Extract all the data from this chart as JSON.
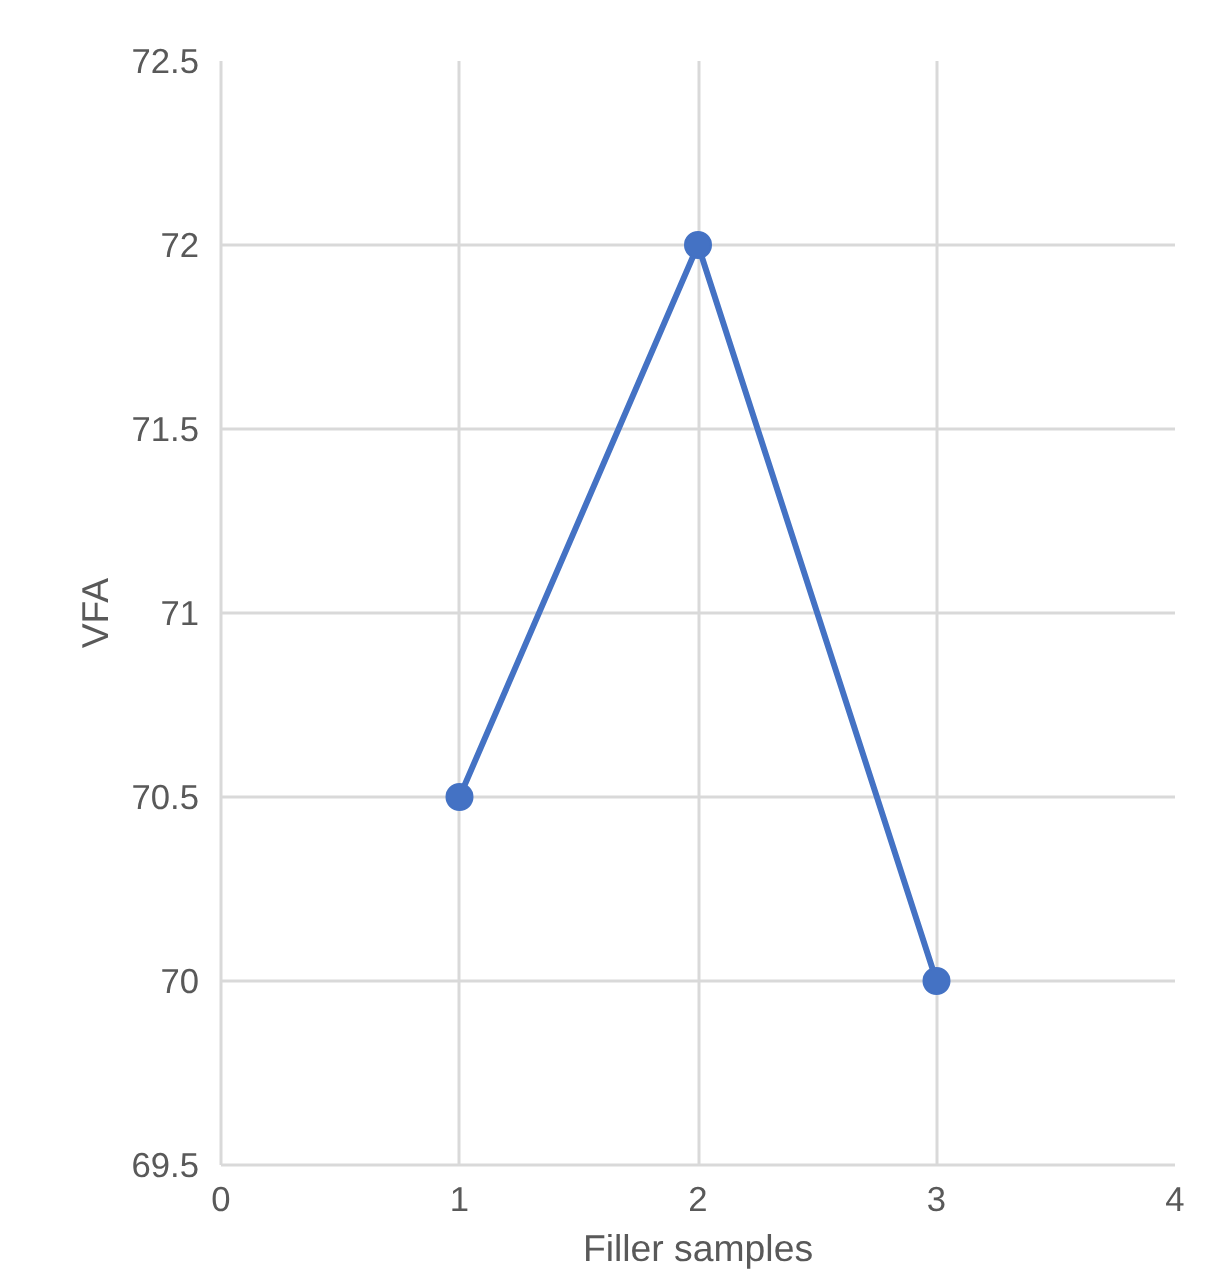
{
  "chart_data": {
    "type": "line",
    "xlabel": "Filler samples",
    "ylabel": "VFA",
    "x": [
      1,
      2,
      3
    ],
    "series": [
      {
        "color": "#4472c4",
        "values": [
          70.5,
          72,
          70
        ]
      }
    ],
    "xlim": [
      0,
      4
    ],
    "xticks": [
      0,
      1,
      2,
      3,
      4
    ],
    "ylim": [
      69.5,
      72.5
    ],
    "yticks": [
      69.5,
      70,
      70.5,
      71,
      71.5,
      72,
      72.5
    ],
    "grid": true,
    "marker": "circle",
    "line_style": "solid"
  }
}
